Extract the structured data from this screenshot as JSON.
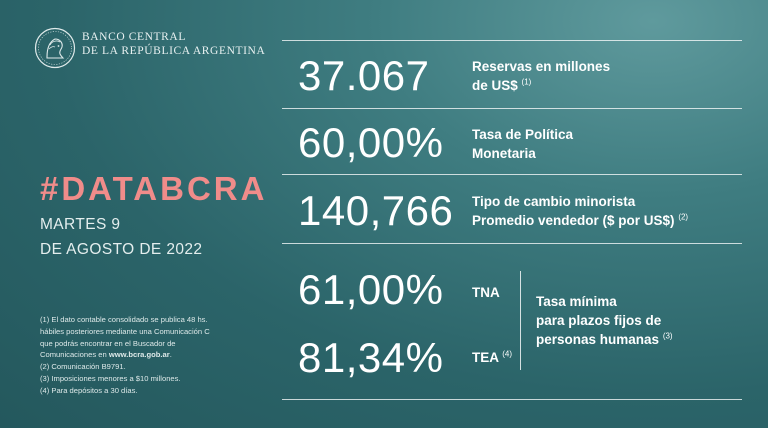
{
  "logo": {
    "line1": "BANCO CENTRAL",
    "line2": "DE LA REPÚBLICA ARGENTINA",
    "icon": "bcra-seal-icon"
  },
  "hashtag": "#DATABCRA",
  "date": {
    "line1": "MARTES 9",
    "line2": "DE AGOSTO DE 2022"
  },
  "notes": {
    "n1_l1": "(1) El dato contable consolidado se publica 48 hs.",
    "n1_l2": "hábiles posteriores mediante una Comunicación C",
    "n1_l3": "que podrás encontrar en el Buscador de",
    "n1_l4_pre": "Comunicaciones en ",
    "n1_l4_link": "www.bcra.gob.ar",
    "n1_l4_post": ".",
    "n2": "(2) Comunicación B9791.",
    "n3": "(3) Imposiciones menores a $10 millones.",
    "n4": "(4) Para depósitos a 30 días."
  },
  "indicators": {
    "reserves": {
      "value": "37.067",
      "label1": "Reservas en millones",
      "label2": "de US$",
      "note": "(1)"
    },
    "policy_rate": {
      "value": "60,00%",
      "label1": "Tasa de Política",
      "label2": "Monetaria"
    },
    "exchange": {
      "value": "140,766",
      "label1": "Tipo de cambio minorista",
      "label2": "Promedio vendedor ($ por US$)",
      "note": "(2)"
    },
    "deposits": {
      "tna_value": "61,00%",
      "tna_label": "TNA",
      "tea_value": "81,34%",
      "tea_label": "TEA",
      "tea_note": "(4)",
      "desc1": "Tasa mínima",
      "desc2": "para plazos fijos de",
      "desc3": "personas humanas",
      "desc_note": "(3)"
    }
  },
  "colors": {
    "background": "#2b6469",
    "accent": "#f08c8a",
    "text": "#ffffff"
  }
}
